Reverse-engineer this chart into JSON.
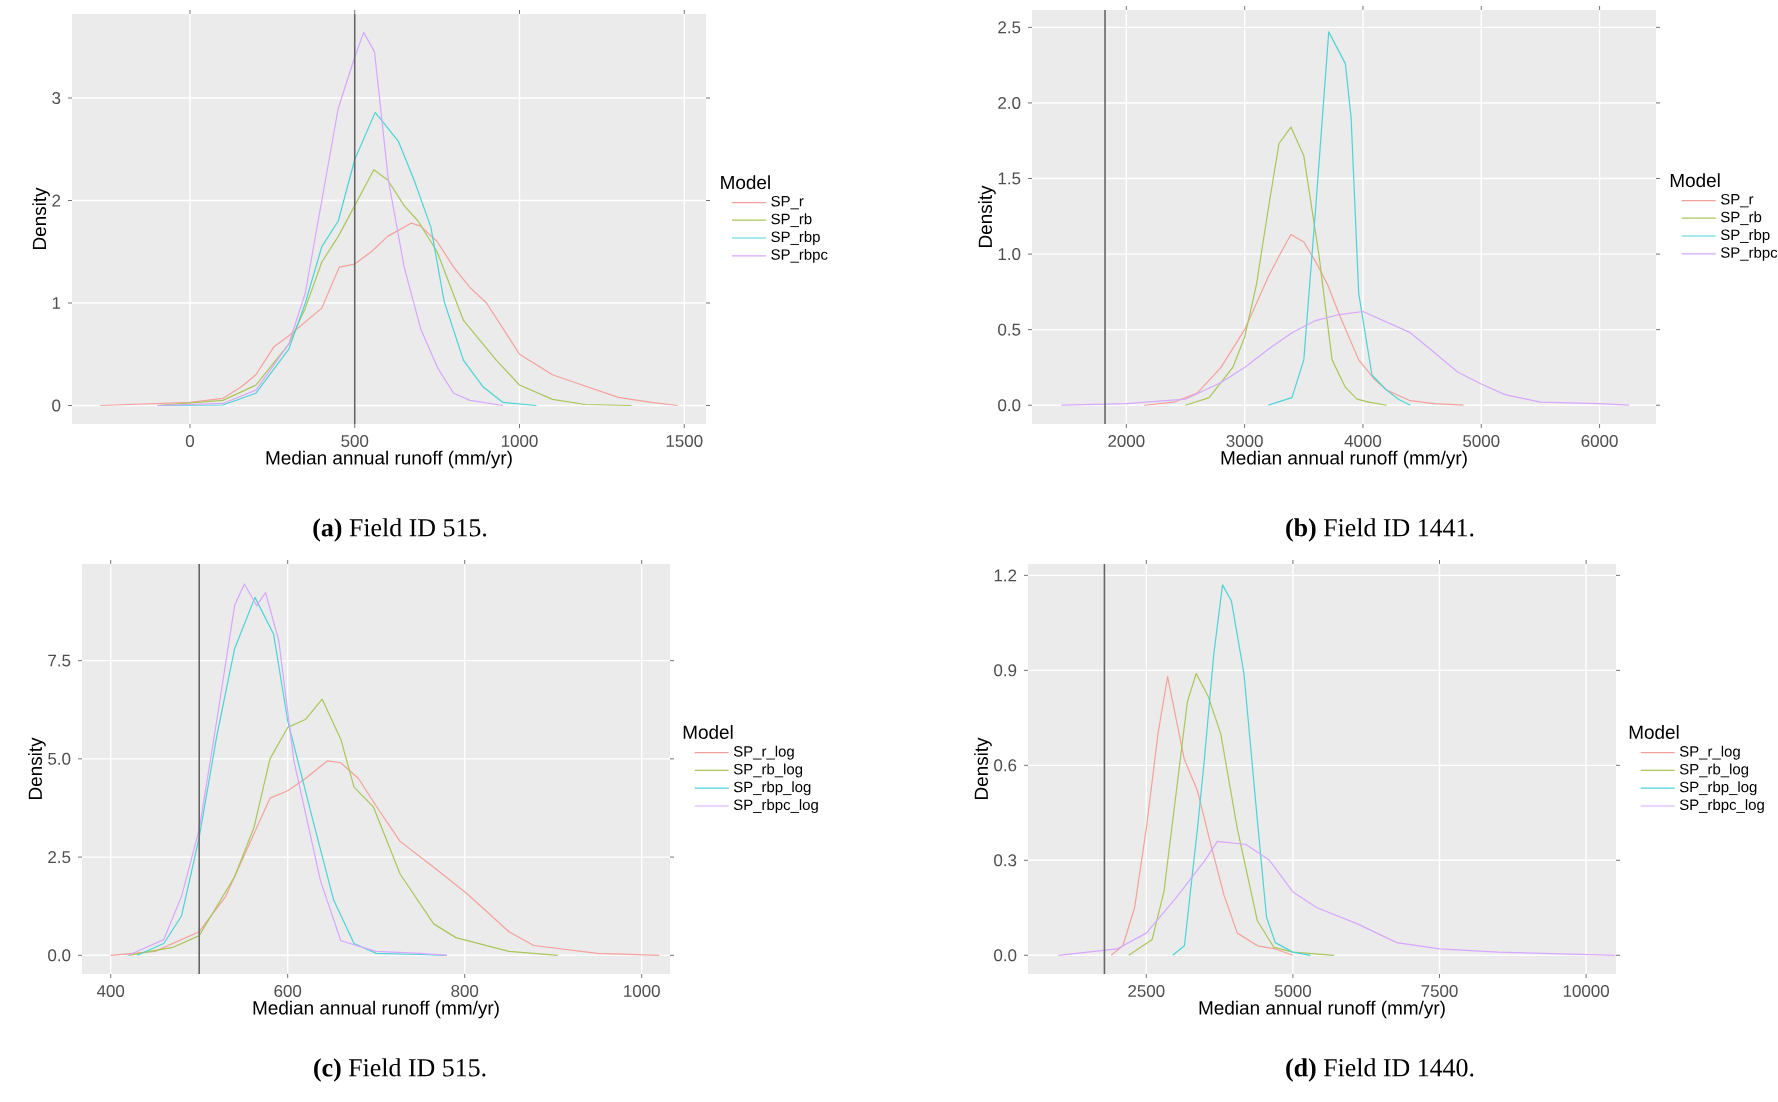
{
  "chart_data": [
    {
      "type": "line",
      "xlabel": "Median annual runoff (mm/yr)",
      "ylabel": "Density",
      "legend_title": "Model",
      "legend": "right",
      "grid": true,
      "xlim": [
        -358,
        1566
      ],
      "ylim": [
        -0.18,
        3.82
      ],
      "xticks": [
        0,
        500,
        1000,
        1500
      ],
      "yticks": [
        0,
        1,
        2,
        3
      ],
      "ref_lines": [
        {
          "axis": "x",
          "value": 500,
          "color": "#666666"
        }
      ],
      "annotations": [
        "**(a)** Field ID 515."
      ],
      "series": [
        {
          "name": "SP_r",
          "color": "#F5A09A",
          "x": [
            -272,
            0,
            100,
            155,
            200,
            254,
            300,
            400,
            453,
            500,
            550,
            600,
            672,
            700,
            750,
            800,
            850,
            900,
            1000,
            1100,
            1190,
            1300,
            1400,
            1480
          ],
          "values": [
            0,
            0.03,
            0.07,
            0.18,
            0.3,
            0.57,
            0.68,
            0.95,
            1.35,
            1.38,
            1.5,
            1.65,
            1.78,
            1.75,
            1.6,
            1.35,
            1.15,
            1.0,
            0.5,
            0.3,
            0.2,
            0.08,
            0.03,
            0
          ]
        },
        {
          "name": "SP_rb",
          "color": "#A9C65A",
          "x": [
            -100,
            100,
            200,
            300,
            350,
            400,
            450,
            500,
            558,
            600,
            650,
            692,
            750,
            830,
            930,
            1000,
            1100,
            1200,
            1340
          ],
          "values": [
            0,
            0.05,
            0.2,
            0.6,
            0.95,
            1.4,
            1.65,
            1.95,
            2.3,
            2.2,
            1.95,
            1.8,
            1.5,
            0.83,
            0.44,
            0.2,
            0.06,
            0.01,
            0
          ]
        },
        {
          "name": "SP_rbp",
          "color": "#4CD3D6",
          "x": [
            -100,
            100,
            200,
            300,
            350,
            400,
            450,
            500,
            562,
            632,
            680,
            731,
            771,
            830,
            890,
            950,
            1050
          ],
          "values": [
            0,
            0.005,
            0.12,
            0.55,
            1.0,
            1.55,
            1.8,
            2.4,
            2.86,
            2.58,
            2.2,
            1.74,
            1.02,
            0.44,
            0.18,
            0.03,
            0
          ]
        },
        {
          "name": "SP_rbpc",
          "color": "#D7A6FF",
          "x": [
            -100,
            100,
            200,
            300,
            350,
            400,
            450,
            500,
            527,
            560,
            602,
            650,
            700,
            751,
            800,
            850,
            950
          ],
          "values": [
            0,
            0.02,
            0.15,
            0.6,
            1.1,
            2.0,
            2.9,
            3.4,
            3.64,
            3.45,
            2.2,
            1.35,
            0.75,
            0.37,
            0.12,
            0.05,
            0
          ]
        }
      ]
    },
    {
      "type": "line",
      "xlabel": "Median annual runoff (mm/yr)",
      "ylabel": "Density",
      "legend_title": "Model",
      "legend": "right",
      "grid": true,
      "xlim": [
        1203,
        6477
      ],
      "ylim": [
        -0.124,
        2.615
      ],
      "xticks": [
        2000,
        3000,
        4000,
        5000,
        6000
      ],
      "yticks": [
        {
          "value": 0,
          "label": "0.0"
        },
        {
          "value": 0.5,
          "label": "0.5"
        },
        {
          "value": 1,
          "label": "1.0"
        },
        {
          "value": 1.5,
          "label": "1.5"
        },
        {
          "value": 2,
          "label": "2.0"
        },
        {
          "value": 2.5,
          "label": "2.5"
        }
      ],
      "ref_lines": [
        {
          "axis": "x",
          "value": 1820,
          "color": "#666666"
        }
      ],
      "annotations": [
        "**(b)** Field ID 1441."
      ],
      "series": [
        {
          "name": "SP_r",
          "color": "#F5A09A",
          "x": [
            2150,
            2400,
            2600,
            2800,
            3000,
            3200,
            3300,
            3391,
            3500,
            3600,
            3700,
            3800,
            3964,
            4100,
            4200,
            4400,
            4600,
            4850
          ],
          "values": [
            0,
            0.02,
            0.08,
            0.25,
            0.5,
            0.85,
            1.0,
            1.13,
            1.08,
            0.95,
            0.8,
            0.6,
            0.3,
            0.17,
            0.1,
            0.03,
            0.01,
            0
          ]
        },
        {
          "name": "SP_rb",
          "color": "#A9C65A",
          "x": [
            2500,
            2700,
            2900,
            3000,
            3100,
            3200,
            3290,
            3391,
            3500,
            3627,
            3739,
            3850,
            3950,
            4050,
            4200
          ],
          "values": [
            0,
            0.05,
            0.25,
            0.45,
            0.8,
            1.3,
            1.73,
            1.84,
            1.65,
            1.0,
            0.3,
            0.12,
            0.04,
            0.02,
            0
          ]
        },
        {
          "name": "SP_rbp",
          "color": "#4CD3D6",
          "x": [
            3200,
            3400,
            3500,
            3600,
            3711,
            3851,
            3900,
            3964,
            4076,
            4200,
            4300,
            4400
          ],
          "values": [
            0,
            0.05,
            0.3,
            1.3,
            2.47,
            2.26,
            1.9,
            0.74,
            0.2,
            0.1,
            0.04,
            0
          ]
        },
        {
          "name": "SP_rbpc",
          "color": "#D7A6FF",
          "x": [
            1450,
            2000,
            2500,
            2800,
            3000,
            3200,
            3400,
            3600,
            3800,
            4000,
            4200,
            4400,
            4600,
            4800,
            5000,
            5200,
            5500,
            6000,
            6250
          ],
          "values": [
            0,
            0.01,
            0.04,
            0.15,
            0.25,
            0.37,
            0.48,
            0.56,
            0.6,
            0.62,
            0.55,
            0.48,
            0.35,
            0.22,
            0.14,
            0.07,
            0.02,
            0.01,
            0
          ]
        }
      ]
    },
    {
      "type": "line",
      "xlabel": "Median annual runoff (mm/yr)",
      "ylabel": "Density",
      "legend_title": "Model",
      "legend": "right",
      "grid": true,
      "xlim": [
        367.6,
        1032
      ],
      "ylim": [
        -0.475,
        9.96
      ],
      "xticks": [
        400,
        600,
        800,
        1000
      ],
      "yticks": [
        {
          "value": 0,
          "label": "0.0"
        },
        {
          "value": 2.5,
          "label": "2.5"
        },
        {
          "value": 5,
          "label": "5.0"
        },
        {
          "value": 7.5,
          "label": "7.5"
        }
      ],
      "ref_lines": [
        {
          "axis": "x",
          "value": 500,
          "color": "#666666"
        }
      ],
      "annotations": [
        "**(c)** Field ID 515."
      ],
      "series": [
        {
          "name": "SP_r_log",
          "color": "#F5A09A",
          "x": [
            400,
            450,
            500,
            530,
            560,
            580,
            600,
            620,
            645,
            660,
            680,
            700,
            727,
            765,
            803,
            850,
            878,
            950,
            1020
          ],
          "values": [
            0,
            0.1,
            0.6,
            1.5,
            3.0,
            4.0,
            4.19,
            4.5,
            4.95,
            4.9,
            4.5,
            3.8,
            2.9,
            2.24,
            1.56,
            0.6,
            0.25,
            0.05,
            0
          ]
        },
        {
          "name": "SP_rb_log",
          "color": "#A9C65A",
          "x": [
            420,
            470,
            500,
            540,
            562,
            580,
            600,
            620,
            639,
            660,
            675,
            697,
            727,
            765,
            790,
            850,
            905
          ],
          "values": [
            0,
            0.2,
            0.5,
            2.0,
            3.26,
            5.0,
            5.8,
            6.0,
            6.52,
            5.5,
            4.28,
            3.77,
            2.07,
            0.8,
            0.45,
            0.1,
            0
          ]
        },
        {
          "name": "SP_rbp_log",
          "color": "#4CD3D6",
          "x": [
            430,
            460,
            480,
            500,
            520,
            540,
            563,
            584,
            600,
            630,
            652,
            675,
            700,
            750,
            780
          ],
          "values": [
            0,
            0.3,
            1.0,
            3.0,
            5.6,
            7.8,
            9.11,
            8.18,
            5.97,
            3.3,
            1.4,
            0.3,
            0.05,
            0.02,
            0
          ]
        },
        {
          "name": "SP_rbpc_log",
          "color": "#D7A6FF",
          "x": [
            420,
            460,
            480,
            500,
            520,
            540,
            551,
            565,
            575,
            590,
            607,
            637,
            660,
            700,
            750,
            780
          ],
          "values": [
            0,
            0.4,
            1.5,
            3.2,
            6.0,
            8.9,
            9.45,
            8.9,
            9.23,
            8.0,
            4.95,
            1.9,
            0.37,
            0.1,
            0.05,
            0
          ]
        }
      ]
    },
    {
      "type": "line",
      "xlabel": "Median annual runoff (mm/yr)",
      "ylabel": "Density",
      "legend_title": "Model",
      "legend": "right",
      "grid": true,
      "xlim": [
        483,
        10510
      ],
      "ylim": [
        -0.059,
        1.236
      ],
      "xticks": [
        2500,
        5000,
        7500,
        10000
      ],
      "yticks": [
        {
          "value": 0,
          "label": "0.0"
        },
        {
          "value": 0.3,
          "label": "0.3"
        },
        {
          "value": 0.6,
          "label": "0.6"
        },
        {
          "value": 0.9,
          "label": "0.9"
        },
        {
          "value": 1.2,
          "label": "1.2"
        }
      ],
      "ref_lines": [
        {
          "axis": "x",
          "value": 1786,
          "color": "#666666"
        }
      ],
      "annotations": [
        "**(d)** Field ID 1440."
      ],
      "series": [
        {
          "name": "SP_r_log",
          "color": "#F5A09A",
          "x": [
            1900,
            2100,
            2300,
            2500,
            2700,
            2863,
            3146,
            3372,
            3600,
            3825,
            4052,
            4400,
            4700,
            5000
          ],
          "values": [
            0,
            0.03,
            0.15,
            0.4,
            0.7,
            0.88,
            0.62,
            0.52,
            0.35,
            0.19,
            0.07,
            0.03,
            0.02,
            0
          ]
        },
        {
          "name": "SP_rb_log",
          "color": "#A9C65A",
          "x": [
            2200,
            2600,
            2800,
            3000,
            3200,
            3350,
            3550,
            3769,
            4052,
            4392,
            4675,
            5000,
            5700
          ],
          "values": [
            0,
            0.05,
            0.2,
            0.5,
            0.8,
            0.89,
            0.82,
            0.7,
            0.4,
            0.11,
            0.025,
            0.01,
            0
          ]
        },
        {
          "name": "SP_rbp_log",
          "color": "#4CD3D6",
          "x": [
            2950,
            3150,
            3372,
            3486,
            3650,
            3800,
            3950,
            4165,
            4392,
            4550,
            4700,
            5000,
            5300
          ],
          "values": [
            0,
            0.03,
            0.4,
            0.61,
            0.95,
            1.17,
            1.12,
            0.89,
            0.43,
            0.12,
            0.04,
            0.01,
            0
          ]
        },
        {
          "name": "SP_rbpc_log",
          "color": "#D7A6FF",
          "x": [
            1000,
            1500,
            2000,
            2500,
            3000,
            3500,
            3712,
            4200,
            4600,
            5000,
            5411,
            6091,
            6771,
            7500,
            8500,
            10500
          ],
          "values": [
            0,
            0.01,
            0.02,
            0.07,
            0.18,
            0.3,
            0.36,
            0.35,
            0.3,
            0.2,
            0.15,
            0.1,
            0.04,
            0.02,
            0.01,
            0
          ]
        }
      ]
    }
  ]
}
